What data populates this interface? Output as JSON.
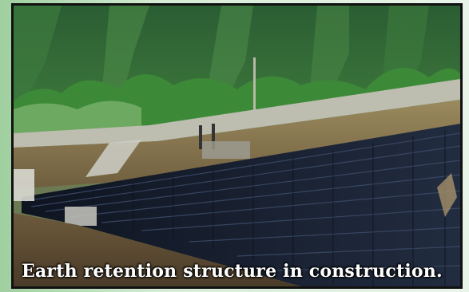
{
  "photo": {
    "caption": "Earth retention structure in construction.",
    "colors": {
      "mountain": "#2f6b3a",
      "trees": "#3f8a3a",
      "soil": "#8a7a55",
      "wall": "#1a2233"
    }
  }
}
